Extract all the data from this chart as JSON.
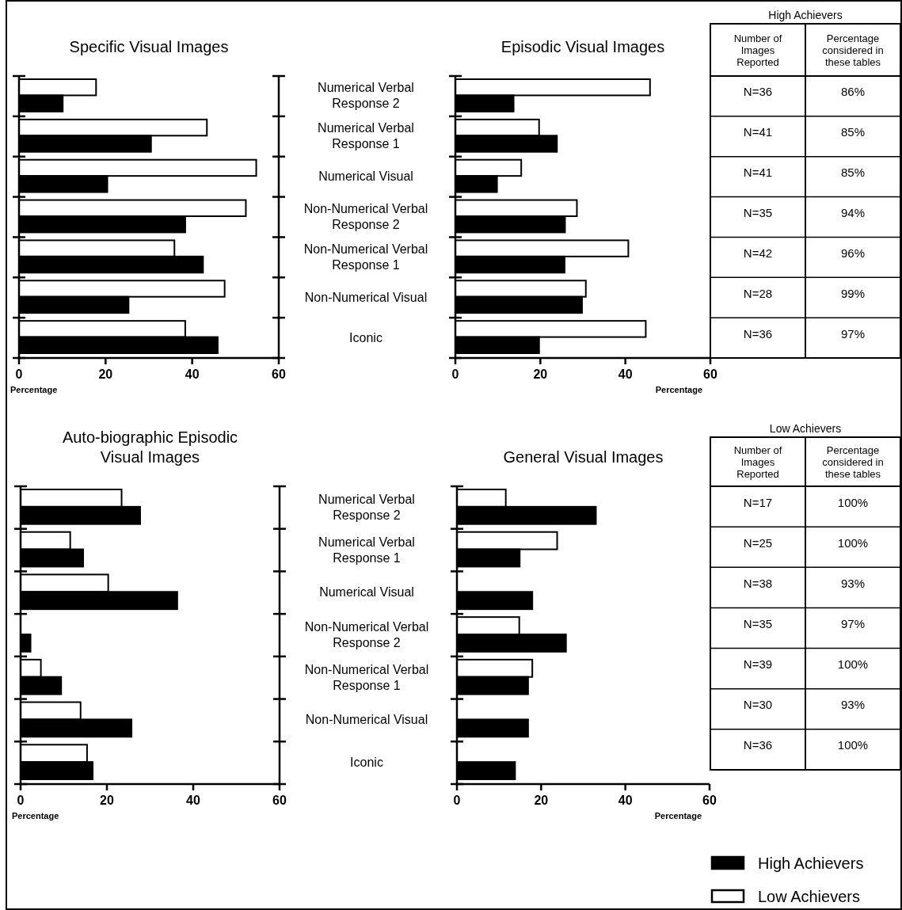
{
  "chart_data": [
    {
      "type": "bar",
      "orientation": "horizontal",
      "title": "Specific Visual Images",
      "xlabel": "Percentage",
      "categories": [
        "Numerical Verbal Response 2",
        "Numerical Verbal Response 1",
        "Numerical Visual",
        "Non-Numerical Verbal Response 2",
        "Non-Numerical Verbal Response 1",
        "Non-Numerical Visual",
        "Iconic"
      ],
      "xlim": [
        0,
        60
      ],
      "xticks": [
        0,
        20,
        40,
        60
      ],
      "series": [
        {
          "color": "#ffffff",
          "values": [
            17.8,
            43.4,
            54.8,
            52.4,
            35.9,
            47.5,
            38.4
          ]
        },
        {
          "color": "#000000",
          "values": [
            10.1,
            30.5,
            20.4,
            38.4,
            42.5,
            25.3,
            45.9
          ]
        }
      ]
    },
    {
      "type": "bar",
      "orientation": "horizontal",
      "title": "Episodic Visual Images",
      "xlabel": "Percentage",
      "categories": [
        null,
        null,
        null,
        null,
        null,
        null,
        null
      ],
      "tick_labels": "x",
      "xlim": [
        0,
        60
      ],
      "xticks": [
        0,
        20,
        40,
        60
      ],
      "series": [
        {
          "color": "#ffffff",
          "values": [
            45.8,
            19.7,
            15.5,
            28.6,
            40.7,
            30.7,
            44.8
          ]
        },
        {
          "color": "#000000",
          "values": [
            13.7,
            23.9,
            9.8,
            25.8,
            25.7,
            29.8,
            19.7
          ]
        }
      ]
    },
    {
      "type": "bar",
      "orientation": "horizontal",
      "title": "Auto-biographic Episodic Visual Images",
      "xlabel": "Percentage",
      "categories": [
        "Numerical Verbal Response 2",
        "Numerical Verbal Response 1",
        "Numerical Visual",
        "Non-Numerical Verbal Response 2",
        "Non-Numerical Verbal Response 1",
        "Non-Numerical Visual",
        "Iconic"
      ],
      "xlim": [
        0,
        60
      ],
      "xticks": [
        0,
        20,
        40,
        60
      ],
      "series": [
        {
          "color": "#ffffff",
          "values": [
            23.4,
            11.5,
            20.3,
            0,
            4.7,
            13.9,
            15.4
          ]
        },
        {
          "color": "#000000",
          "values": [
            27.7,
            14.5,
            36.3,
            2.3,
            9.4,
            25.7,
            16.7
          ]
        }
      ]
    },
    {
      "type": "bar",
      "orientation": "horizontal",
      "title": "General Visual Images",
      "xlabel": "Percentage",
      "categories": [
        null,
        null,
        null,
        null,
        null,
        null,
        null
      ],
      "tick_labels": "x",
      "xlim": [
        0,
        60
      ],
      "xticks": [
        0,
        20,
        40,
        60
      ],
      "legend": "bottom right",
      "series": [
        {
          "name": "Low Achievers",
          "color": "#ffffff",
          "values": [
            11.6,
            23.8,
            0,
            14.8,
            17.9,
            0,
            0
          ]
        },
        {
          "name": "High Achievers",
          "color": "#000000",
          "values": [
            33.0,
            14.9,
            17.9,
            25.9,
            16.9,
            16.9,
            13.8
          ]
        }
      ]
    },
    {
      "type": "other",
      "title": "High Achievers",
      "categories": [
        "Number of Images Reported",
        "Percentage considered in these tables"
      ],
      "cell_labels": [
        [
          "N=36",
          "86%"
        ],
        [
          "N=41",
          "85%"
        ],
        [
          "N=41",
          "85%"
        ],
        [
          "N=35",
          "94%"
        ],
        [
          "N=42",
          "96%"
        ],
        [
          "N=28",
          "99%"
        ],
        [
          "N=36",
          "97%"
        ]
      ]
    },
    {
      "type": "other",
      "title": "Low Achievers",
      "categories": [
        "Number of Images Reported",
        "Percentage considered in these tables"
      ],
      "cell_labels": [
        [
          "N=17",
          "100%"
        ],
        [
          "N=25",
          "100%"
        ],
        [
          "N=38",
          "93%"
        ],
        [
          "N=35",
          "97%"
        ],
        [
          "N=39",
          "100%"
        ],
        [
          "N=30",
          "93%"
        ],
        [
          "N=36",
          "100%"
        ]
      ]
    }
  ]
}
